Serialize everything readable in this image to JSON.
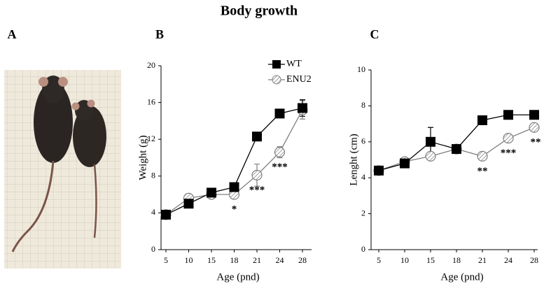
{
  "title": "Body growth",
  "panels": [
    "A",
    "B",
    "C"
  ],
  "chart_data": [
    {
      "type": "line",
      "x_label": "Age (pnd)",
      "y_label": "Weight  (g)",
      "categories": [
        "5",
        "10",
        "15",
        "18",
        "21",
        "24",
        "28"
      ],
      "ylim": [
        0,
        20
      ],
      "yticks": [
        0,
        4,
        8,
        12,
        16,
        20
      ],
      "legend": "top-right",
      "series": [
        {
          "name": "WT",
          "color": "#000000",
          "marker": "square",
          "values": [
            3.8,
            5.0,
            6.2,
            6.8,
            12.3,
            14.8,
            15.4
          ],
          "errors": [
            null,
            null,
            null,
            null,
            null,
            null,
            0.9
          ]
        },
        {
          "name": "ENU2",
          "color": "#808080",
          "marker": "circle",
          "values": [
            3.8,
            5.6,
            6.0,
            6.0,
            8.1,
            10.6,
            15.2
          ],
          "errors": [
            null,
            null,
            null,
            null,
            1.2,
            0.6,
            1.0
          ]
        }
      ],
      "annotations": [
        null,
        null,
        null,
        "*",
        "***",
        "***",
        null
      ]
    },
    {
      "type": "line",
      "x_label": "Age (pnd)",
      "y_label": "Lenght  (cm)",
      "categories": [
        "5",
        "10",
        "15",
        "18",
        "21",
        "24",
        "28"
      ],
      "ylim": [
        0,
        10
      ],
      "yticks": [
        0,
        2,
        4,
        6,
        8,
        10
      ],
      "series": [
        {
          "name": "WT",
          "color": "#000000",
          "marker": "square",
          "values": [
            4.4,
            4.8,
            6.0,
            5.6,
            7.2,
            7.5,
            7.5
          ],
          "errors": [
            null,
            null,
            0.8,
            null,
            null,
            null,
            null
          ]
        },
        {
          "name": "ENU2",
          "color": "#808080",
          "marker": "circle",
          "values": [
            4.4,
            4.9,
            5.2,
            5.6,
            5.2,
            6.2,
            6.8
          ],
          "errors": [
            null,
            null,
            null,
            null,
            null,
            null,
            null
          ]
        }
      ],
      "annotations": [
        null,
        null,
        null,
        null,
        "**",
        "***",
        "**"
      ]
    }
  ]
}
